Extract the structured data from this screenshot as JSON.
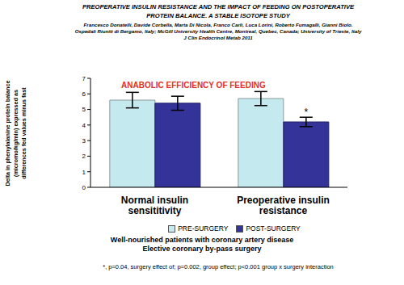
{
  "chart_data": {
    "type": "bar",
    "paper_title": [
      "PREOPERATIVE INSULIN RESISTANCE AND THE IMPACT OF FEEDING ON POSTOPERATIVE",
      "PROTEIN BALANCE.  A STABLE ISOTOPE STUDY"
    ],
    "authors": "Francesco Donatelli, Davide Corbella, Marta Di Nicola, Franco Carli, Luca Lorini, Roberto Fumagalli, Gianni Biolo.",
    "affiliations": "Ospedali Riuniti di Bergamo, Italy; McGill University Health Centre, Montreal, Quebec, Canada; University of Trieste, Italy",
    "journal": "J Clin Endocrinol Metab 2011",
    "title": "ANABOLIC EFFICIENCY OF FEEDING",
    "y_label": [
      "Delta in phenylalanine protein balance",
      "(micromo/kg/min) expressed as",
      "differences fed values minus fast"
    ],
    "categories": [
      "Normal insulin sensititivity",
      "Preoperative insulin resistance"
    ],
    "series": [
      {
        "name": "PRE-SURGERY",
        "color": "#c4e9ee",
        "values": [
          5.6,
          5.7
        ],
        "errors": [
          0.5,
          0.45
        ]
      },
      {
        "name": "POST-SURGERY",
        "color": "#333399",
        "values": [
          5.4,
          4.2
        ],
        "errors": [
          0.45,
          0.3
        ]
      }
    ],
    "ylim": [
      0,
      7
    ],
    "yticks": [
      0,
      1,
      2,
      3,
      4,
      5,
      6,
      7
    ],
    "grid": false,
    "legend": "bottom",
    "annotations": [
      {
        "text": "*",
        "series": "POST-SURGERY",
        "category": "Preoperative insulin resistance"
      }
    ],
    "notes": [
      "Well-nourished patients with coronary artery disease",
      "Elective coronary by-pass surgery"
    ],
    "footnote": "*, p=0.04, surgery effect of; p=0.002, group effect; p<0.001 group x surgery interaction"
  }
}
